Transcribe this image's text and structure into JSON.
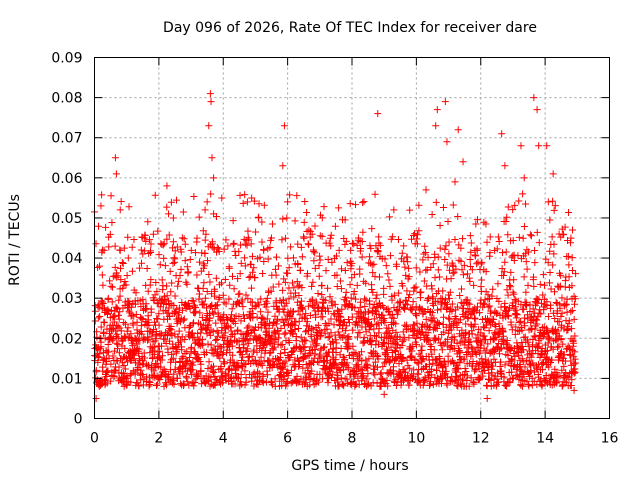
{
  "chart_data": {
    "type": "scatter",
    "title": "Day 096 of 2026, Rate Of TEC Index for receiver dare",
    "xlabel": "GPS time / hours",
    "ylabel": "ROTI / TECUs",
    "xlim": [
      0,
      16
    ],
    "ylim": [
      0,
      0.09
    ],
    "xticks": [
      "0",
      "2",
      "4",
      "6",
      "8",
      "10",
      "12",
      "14",
      "16"
    ],
    "yticks": [
      "0",
      "0.01",
      "0.02",
      "0.03",
      "0.04",
      "0.05",
      "0.06",
      "0.07",
      "0.08",
      "0.09"
    ],
    "grid": true,
    "marker": "plus",
    "color": "#ff0000",
    "data_span_hours": [
      0,
      14.95
    ],
    "typical_band": [
      0.008,
      0.03
    ],
    "series": [
      {
        "name": "ROTI",
        "points": [
          {
            "x": 0.05,
            "y": 0.005
          },
          {
            "x": 0.2,
            "y": 0.053
          },
          {
            "x": 0.25,
            "y": 0.042
          },
          {
            "x": 0.65,
            "y": 0.065
          },
          {
            "x": 0.68,
            "y": 0.061
          },
          {
            "x": 0.8,
            "y": 0.052
          },
          {
            "x": 1.05,
            "y": 0.04
          },
          {
            "x": 1.5,
            "y": 0.041
          },
          {
            "x": 2.25,
            "y": 0.058
          },
          {
            "x": 2.3,
            "y": 0.051
          },
          {
            "x": 2.45,
            "y": 0.05
          },
          {
            "x": 3.5,
            "y": 0.054
          },
          {
            "x": 3.6,
            "y": 0.081
          },
          {
            "x": 3.62,
            "y": 0.079
          },
          {
            "x": 3.55,
            "y": 0.073
          },
          {
            "x": 3.65,
            "y": 0.065
          },
          {
            "x": 3.7,
            "y": 0.06
          },
          {
            "x": 3.7,
            "y": 0.051
          },
          {
            "x": 4.75,
            "y": 0.054
          },
          {
            "x": 5.2,
            "y": 0.049
          },
          {
            "x": 5.9,
            "y": 0.073
          },
          {
            "x": 5.85,
            "y": 0.063
          },
          {
            "x": 6.0,
            "y": 0.054
          },
          {
            "x": 6.85,
            "y": 0.048
          },
          {
            "x": 8.2,
            "y": 0.045
          },
          {
            "x": 8.8,
            "y": 0.076
          },
          {
            "x": 9.3,
            "y": 0.052
          },
          {
            "x": 10.3,
            "y": 0.057
          },
          {
            "x": 10.6,
            "y": 0.073
          },
          {
            "x": 10.65,
            "y": 0.077
          },
          {
            "x": 10.9,
            "y": 0.079
          },
          {
            "x": 10.95,
            "y": 0.069
          },
          {
            "x": 11.2,
            "y": 0.059
          },
          {
            "x": 11.3,
            "y": 0.072
          },
          {
            "x": 11.45,
            "y": 0.064
          },
          {
            "x": 12.65,
            "y": 0.071
          },
          {
            "x": 12.75,
            "y": 0.063
          },
          {
            "x": 13.25,
            "y": 0.068
          },
          {
            "x": 13.3,
            "y": 0.056
          },
          {
            "x": 13.35,
            "y": 0.06
          },
          {
            "x": 13.65,
            "y": 0.08
          },
          {
            "x": 13.75,
            "y": 0.077
          },
          {
            "x": 13.8,
            "y": 0.068
          },
          {
            "x": 14.05,
            "y": 0.068
          },
          {
            "x": 14.1,
            "y": 0.054
          },
          {
            "x": 14.25,
            "y": 0.061
          },
          {
            "x": 14.85,
            "y": 0.047
          },
          {
            "x": 9.0,
            "y": 0.006
          },
          {
            "x": 12.2,
            "y": 0.005
          },
          {
            "x": 14.9,
            "y": 0.007
          }
        ]
      }
    ]
  }
}
